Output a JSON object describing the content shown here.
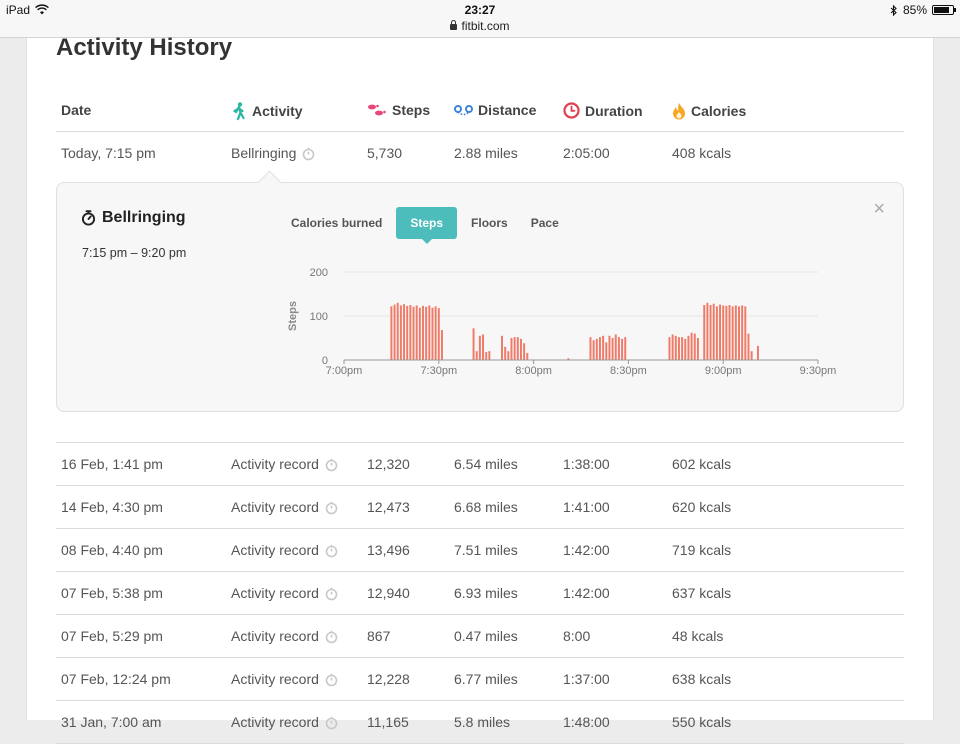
{
  "status_bar": {
    "device": "iPad",
    "time": "23:27",
    "url": "fitbit.com",
    "battery": "85%",
    "battery_level": 0.85
  },
  "page": {
    "title": "Activity History"
  },
  "table": {
    "headers": {
      "date": "Date",
      "activity": "Activity",
      "steps": "Steps",
      "distance": "Distance",
      "duration": "Duration",
      "calories": "Calories"
    },
    "header_icons": {
      "activity": "walking-person-icon",
      "steps": "footprints-icon",
      "distance": "distance-route-icon",
      "duration": "clock-icon",
      "calories": "flame-icon"
    },
    "header_icon_colors": {
      "activity": "#2bb7a5",
      "steps": "#e8477a",
      "distance": "#3f86d9",
      "duration": "#e0404f",
      "calories": "#f5a623"
    },
    "rows": [
      {
        "date": "Today, 7:15 pm",
        "activity": "Bellringing",
        "steps": "5,730",
        "distance": "2.88 miles",
        "duration": "2:05:00",
        "calories": "408 kcals"
      },
      {
        "date": "16 Feb, 1:41 pm",
        "activity": "Activity record",
        "steps": "12,320",
        "distance": "6.54 miles",
        "duration": "1:38:00",
        "calories": "602 kcals"
      },
      {
        "date": "14 Feb, 4:30 pm",
        "activity": "Activity record",
        "steps": "12,473",
        "distance": "6.68 miles",
        "duration": "1:41:00",
        "calories": "620 kcals"
      },
      {
        "date": "08 Feb, 4:40 pm",
        "activity": "Activity record",
        "steps": "13,496",
        "distance": "7.51 miles",
        "duration": "1:42:00",
        "calories": "719 kcals"
      },
      {
        "date": "07 Feb, 5:38 pm",
        "activity": "Activity record",
        "steps": "12,940",
        "distance": "6.93 miles",
        "duration": "1:42:00",
        "calories": "637 kcals"
      },
      {
        "date": "07 Feb, 5:29 pm",
        "activity": "Activity record",
        "steps": "867",
        "distance": "0.47 miles",
        "duration": "8:00",
        "calories": "48 kcals"
      },
      {
        "date": "07 Feb, 12:24 pm",
        "activity": "Activity record",
        "steps": "12,228",
        "distance": "6.77 miles",
        "duration": "1:37:00",
        "calories": "638 kcals"
      },
      {
        "date": "31 Jan, 7:00 am",
        "activity": "Activity record",
        "steps": "11,165",
        "distance": "5.8 miles",
        "duration": "1:48:00",
        "calories": "550 kcals"
      }
    ]
  },
  "detail": {
    "title": "Bellringing",
    "time_range": "7:15 pm – 9:20 pm",
    "close": "×",
    "tabs": [
      "Calories burned",
      "Steps",
      "Floors",
      "Pace"
    ],
    "active_tab": "Steps"
  },
  "chart_data": {
    "type": "bar",
    "ylabel": "Steps",
    "ylim": [
      0,
      200
    ],
    "yticks": [
      0,
      100,
      200
    ],
    "xticks": [
      "7:00pm",
      "7:30pm",
      "8:00pm",
      "8:30pm",
      "9:00pm",
      "9:30pm"
    ],
    "xlim_minutes_after_7pm": [
      0,
      150
    ],
    "bar_color": "#f07a68",
    "grid": true,
    "series": [
      {
        "values": [
          {
            "x": 15,
            "y": 122
          },
          {
            "x": 16,
            "y": 126
          },
          {
            "x": 17,
            "y": 130
          },
          {
            "x": 18,
            "y": 124
          },
          {
            "x": 19,
            "y": 127
          },
          {
            "x": 20,
            "y": 123
          },
          {
            "x": 21,
            "y": 125
          },
          {
            "x": 22,
            "y": 121
          },
          {
            "x": 23,
            "y": 124
          },
          {
            "x": 24,
            "y": 119
          },
          {
            "x": 25,
            "y": 123
          },
          {
            "x": 26,
            "y": 121
          },
          {
            "x": 27,
            "y": 124
          },
          {
            "x": 28,
            "y": 119
          },
          {
            "x": 29,
            "y": 122
          },
          {
            "x": 30,
            "y": 118
          },
          {
            "x": 31,
            "y": 68
          },
          {
            "x": 41,
            "y": 72
          },
          {
            "x": 42,
            "y": 20
          },
          {
            "x": 43,
            "y": 55
          },
          {
            "x": 44,
            "y": 58
          },
          {
            "x": 45,
            "y": 18
          },
          {
            "x": 46,
            "y": 20
          },
          {
            "x": 50,
            "y": 55
          },
          {
            "x": 51,
            "y": 30
          },
          {
            "x": 52,
            "y": 20
          },
          {
            "x": 53,
            "y": 50
          },
          {
            "x": 54,
            "y": 52
          },
          {
            "x": 55,
            "y": 52
          },
          {
            "x": 56,
            "y": 48
          },
          {
            "x": 57,
            "y": 38
          },
          {
            "x": 58,
            "y": 16
          },
          {
            "x": 71,
            "y": 4
          },
          {
            "x": 78,
            "y": 52
          },
          {
            "x": 79,
            "y": 45
          },
          {
            "x": 80,
            "y": 48
          },
          {
            "x": 81,
            "y": 52
          },
          {
            "x": 82,
            "y": 55
          },
          {
            "x": 83,
            "y": 40
          },
          {
            "x": 84,
            "y": 55
          },
          {
            "x": 85,
            "y": 50
          },
          {
            "x": 86,
            "y": 58
          },
          {
            "x": 87,
            "y": 52
          },
          {
            "x": 88,
            "y": 48
          },
          {
            "x": 89,
            "y": 52
          },
          {
            "x": 103,
            "y": 52
          },
          {
            "x": 104,
            "y": 58
          },
          {
            "x": 105,
            "y": 55
          },
          {
            "x": 106,
            "y": 52
          },
          {
            "x": 107,
            "y": 52
          },
          {
            "x": 108,
            "y": 48
          },
          {
            "x": 109,
            "y": 55
          },
          {
            "x": 110,
            "y": 62
          },
          {
            "x": 111,
            "y": 60
          },
          {
            "x": 112,
            "y": 50
          },
          {
            "x": 114,
            "y": 125
          },
          {
            "x": 115,
            "y": 130
          },
          {
            "x": 116,
            "y": 125
          },
          {
            "x": 117,
            "y": 128
          },
          {
            "x": 118,
            "y": 122
          },
          {
            "x": 119,
            "y": 126
          },
          {
            "x": 120,
            "y": 124
          },
          {
            "x": 121,
            "y": 123
          },
          {
            "x": 122,
            "y": 125
          },
          {
            "x": 123,
            "y": 122
          },
          {
            "x": 124,
            "y": 124
          },
          {
            "x": 125,
            "y": 122
          },
          {
            "x": 126,
            "y": 124
          },
          {
            "x": 127,
            "y": 122
          },
          {
            "x": 128,
            "y": 60
          },
          {
            "x": 129,
            "y": 20
          },
          {
            "x": 131,
            "y": 32
          }
        ]
      }
    ]
  }
}
